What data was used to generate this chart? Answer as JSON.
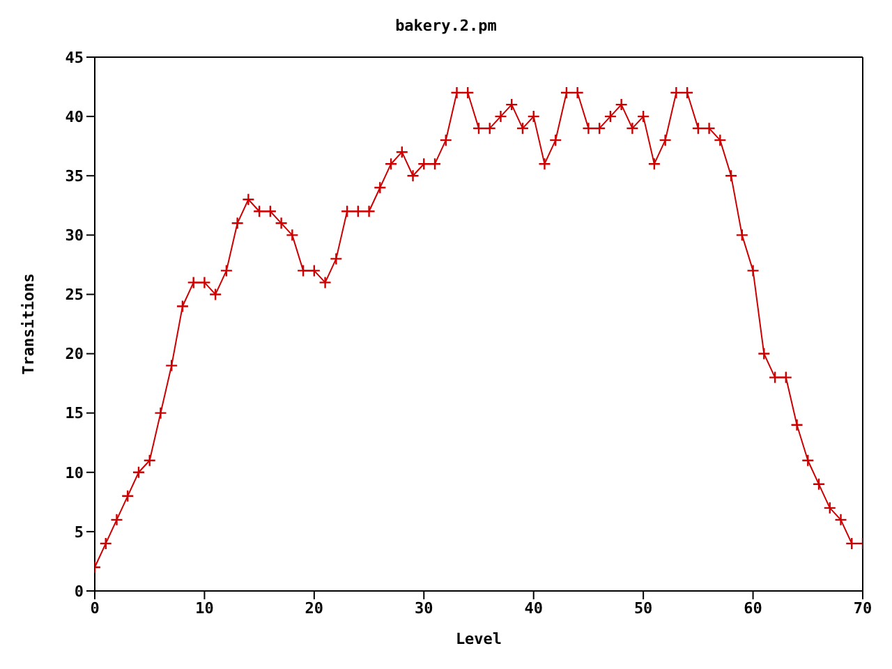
{
  "chart_data": {
    "type": "line",
    "title": "bakery.2.pm",
    "xlabel": "Level",
    "ylabel": "Transitions",
    "x": [
      0,
      1,
      2,
      3,
      4,
      5,
      6,
      7,
      8,
      9,
      10,
      11,
      12,
      13,
      14,
      15,
      16,
      17,
      18,
      19,
      20,
      21,
      22,
      23,
      24,
      25,
      26,
      27,
      28,
      29,
      30,
      31,
      32,
      33,
      34,
      35,
      36,
      37,
      38,
      39,
      40,
      41,
      42,
      43,
      44,
      45,
      46,
      47,
      48,
      49,
      50,
      51,
      52,
      53,
      54,
      55,
      56,
      57,
      58,
      59,
      60,
      61,
      62,
      63,
      64,
      65,
      66,
      67,
      68,
      69,
      70
    ],
    "series": [
      {
        "color": "#cc0000",
        "values": [
          2,
          4,
          6,
          8,
          10,
          11,
          15,
          19,
          24,
          26,
          26,
          25,
          27,
          31,
          33,
          32,
          32,
          31,
          30,
          27,
          27,
          26,
          28,
          32,
          32,
          32,
          34,
          36,
          37,
          35,
          36,
          36,
          38,
          42,
          42,
          39,
          39,
          40,
          41,
          39,
          40,
          36,
          38,
          42,
          42,
          39,
          39,
          40,
          41,
          39,
          40,
          36,
          38,
          42,
          42,
          39,
          39,
          38,
          35,
          30,
          27,
          20,
          18,
          18,
          14,
          11,
          9,
          7,
          6,
          4,
          4
        ]
      }
    ],
    "xlim": [
      0,
      70
    ],
    "xticks": [
      0,
      10,
      20,
      30,
      40,
      50,
      60,
      70
    ],
    "ylim": [
      0,
      45
    ],
    "yticks": [
      0,
      5,
      10,
      15,
      20,
      25,
      30,
      35,
      40,
      45
    ],
    "grid": false,
    "legend": false,
    "marker": "cross",
    "line_style": "solid"
  }
}
